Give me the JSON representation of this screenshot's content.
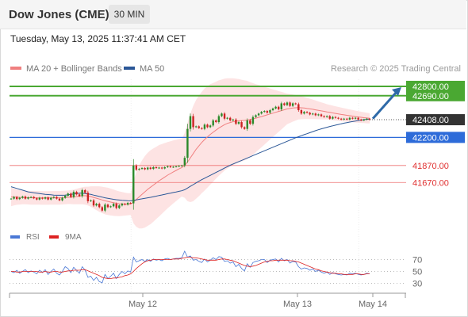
{
  "header": {
    "instrument": "Dow Jones (CME)",
    "timeframe": "30 MIN",
    "datetime": "Tuesday, May 13, 2025 11:37:41 AM CET"
  },
  "colors": {
    "bollinger": "#f08080",
    "ma50": "#2b5797",
    "resistance": "#4aa832",
    "pivot": "#2d6bd9",
    "support": "#ee7070",
    "current": "#333333",
    "rsi": "#4a78d6",
    "rsi_ma": "#dd2222",
    "candle_up": "#2a8a2a",
    "candle_down": "#cc2222"
  },
  "chart_data": [
    {
      "type": "candlestick",
      "title": "",
      "legend": [
        {
          "label": "MA 20 + Bollinger Bands",
          "color": "#f08080"
        },
        {
          "label": "MA 50",
          "color": "#2b5797"
        }
      ],
      "watermark": "Research © 2025 Trading Central",
      "x_ticks": [
        "May 12",
        "May 13",
        "May 14"
      ],
      "ylim": [
        41300,
        42930
      ],
      "current_price": "42408.00",
      "levels": [
        {
          "value": 42800,
          "label": "42800.00",
          "kind": "resistance"
        },
        {
          "value": 42690,
          "label": "42690.00",
          "kind": "resistance"
        },
        {
          "value": 42200,
          "label": "42200.00",
          "kind": "pivot"
        },
        {
          "value": 41870,
          "label": "41870.00",
          "kind": "support"
        },
        {
          "value": 41670,
          "label": "41670.00",
          "kind": "support"
        }
      ],
      "arrow": {
        "from": 42420,
        "to": 42800
      },
      "close": [
        41480,
        41500,
        41475,
        41490,
        41505,
        41480,
        41495,
        41500,
        41485,
        41470,
        41490,
        41480,
        41495,
        41470,
        41490,
        41500,
        41480,
        41460,
        41490,
        41515,
        41540,
        41500,
        41560,
        41530,
        41510,
        41580,
        41550,
        41450,
        41460,
        41400,
        41420,
        41380,
        41340,
        41410,
        41380,
        41390,
        41420,
        41370,
        41400,
        41420,
        41410,
        41430,
        41425,
        41870,
        41820,
        41830,
        41840,
        41825,
        41845,
        41830,
        41850,
        41840,
        41845,
        41835,
        41850,
        41860,
        41850,
        41855,
        41860,
        41865,
        41870,
        41960,
        42300,
        42450,
        42320,
        42330,
        42310,
        42300,
        42350,
        42320,
        42340,
        42400,
        42380,
        42450,
        42480,
        42420,
        42430,
        42400,
        42410,
        42360,
        42380,
        42320,
        42300,
        42400,
        42360,
        42440,
        42460,
        42480,
        42500,
        42510,
        42490,
        42520,
        42540,
        42560,
        42530,
        42600,
        42580,
        42610,
        42570,
        42600,
        42590,
        42520,
        42480,
        42500,
        42490,
        42470,
        42480,
        42460,
        42470,
        42450,
        42440,
        42450,
        42420,
        42440,
        42430,
        42420,
        42410,
        42420,
        42410,
        42430,
        42420,
        42430,
        42410,
        42400,
        42410,
        42420,
        42408
      ],
      "ma50": [
        41620,
        41610,
        41600,
        41590,
        41580,
        41570,
        41560,
        41555,
        41550,
        41545,
        41540,
        41535,
        41530,
        41528,
        41525,
        41522,
        41520,
        41520,
        41520,
        41522,
        41525,
        41530,
        41535,
        41540,
        41545,
        41545,
        41540,
        41535,
        41530,
        41522,
        41514,
        41506,
        41498,
        41490,
        41484,
        41478,
        41472,
        41468,
        41464,
        41460,
        41458,
        41456,
        41455,
        41460,
        41466,
        41472,
        41478,
        41484,
        41490,
        41496,
        41503,
        41510,
        41517,
        41524,
        41531,
        41538,
        41545,
        41552,
        41559,
        41566,
        41573,
        41585,
        41605,
        41625,
        41645,
        41665,
        41685,
        41703,
        41720,
        41737,
        41754,
        41771,
        41788,
        41805,
        41822,
        41839,
        41856,
        41873,
        41888,
        41902,
        41916,
        41930,
        41944,
        41958,
        41972,
        41986,
        42000,
        42014,
        42028,
        42042,
        42056,
        42070,
        42084,
        42098,
        42112,
        42126,
        42140,
        42154,
        42168,
        42182,
        42196,
        42208,
        42220,
        42232,
        42244,
        42256,
        42268,
        42279,
        42290,
        42300,
        42310,
        42319,
        42328,
        42336,
        42344,
        42352,
        42360,
        42367,
        42374,
        42380,
        42386,
        42392,
        42398,
        42403,
        42408,
        42412,
        42416
      ],
      "bb_mid": [
        41500,
        41500,
        41498,
        41496,
        41495,
        41494,
        41492,
        41490,
        41490,
        41490,
        41489,
        41488,
        41488,
        41488,
        41489,
        41490,
        41490,
        41490,
        41492,
        41494,
        41496,
        41498,
        41500,
        41505,
        41510,
        41514,
        41515,
        41510,
        41505,
        41495,
        41485,
        41475,
        41465,
        41455,
        41448,
        41440,
        41433,
        41426,
        41420,
        41418,
        41416,
        41415,
        41416,
        41440,
        41470,
        41500,
        41530,
        41560,
        41590,
        41615,
        41640,
        41665,
        41690,
        41712,
        41734,
        41756,
        41775,
        41795,
        41812,
        41830,
        41845,
        41870,
        41910,
        41960,
        42010,
        42060,
        42100,
        42140,
        42175,
        42205,
        42235,
        42260,
        42285,
        42310,
        42330,
        42350,
        42365,
        42375,
        42385,
        42390,
        42395,
        42398,
        42400,
        42405,
        42410,
        42418,
        42426,
        42435,
        42445,
        42455,
        42465,
        42475,
        42485,
        42495,
        42505,
        42515,
        42525,
        42535,
        42540,
        42545,
        42548,
        42550,
        42548,
        42545,
        42540,
        42535,
        42530,
        42524,
        42518,
        42512,
        42506,
        42500,
        42494,
        42488,
        42482,
        42476,
        42470,
        42465,
        42460,
        42455,
        42450,
        42445,
        42440,
        42436,
        42432,
        42428,
        42424
      ],
      "bb_width": [
        110,
        100,
        90,
        85,
        80,
        80,
        80,
        80,
        80,
        80,
        80,
        80,
        80,
        80,
        80,
        80,
        80,
        80,
        80,
        80,
        80,
        82,
        85,
        90,
        95,
        100,
        105,
        110,
        120,
        130,
        140,
        150,
        155,
        160,
        160,
        158,
        155,
        150,
        145,
        140,
        135,
        130,
        128,
        250,
        320,
        370,
        400,
        420,
        430,
        435,
        430,
        425,
        420,
        410,
        400,
        390,
        380,
        370,
        360,
        350,
        340,
        380,
        460,
        520,
        560,
        580,
        590,
        595,
        600,
        595,
        590,
        580,
        570,
        560,
        550,
        540,
        530,
        520,
        510,
        500,
        490,
        480,
        470,
        460,
        440,
        420,
        400,
        380,
        360,
        340,
        320,
        300,
        280,
        260,
        240,
        220,
        200,
        180,
        170,
        160,
        150,
        140,
        135,
        130,
        125,
        120,
        115,
        110,
        105,
        100,
        95,
        90,
        88,
        86,
        84,
        82,
        80,
        78,
        76,
        74,
        72,
        70,
        68,
        66,
        64,
        62,
        60
      ],
      "rsi_ticks": [
        70,
        50,
        30
      ],
      "rsi_legend": [
        {
          "label": "RSI",
          "color": "#4a78d6"
        },
        {
          "label": "9MA",
          "color": "#dd2222"
        }
      ],
      "rsi": [
        50,
        48,
        52,
        47,
        50,
        53,
        48,
        51,
        49,
        46,
        52,
        48,
        53,
        45,
        50,
        54,
        47,
        44,
        50,
        58,
        55,
        48,
        57,
        52,
        47,
        58,
        52,
        40,
        42,
        35,
        40,
        33,
        31,
        45,
        38,
        42,
        47,
        38,
        45,
        50,
        46,
        51,
        49,
        74,
        66,
        68,
        70,
        67,
        70,
        67,
        71,
        69,
        70,
        68,
        71,
        72,
        70,
        71,
        72,
        72,
        73,
        84,
        74,
        76,
        69,
        70,
        67,
        65,
        71,
        66,
        69,
        73,
        70,
        75,
        74,
        67,
        68,
        64,
        66,
        58,
        62,
        55,
        51,
        63,
        57,
        65,
        67,
        68,
        70,
        70,
        65,
        69,
        70,
        71,
        66,
        72,
        68,
        70,
        64,
        67,
        66,
        58,
        54,
        56,
        55,
        52,
        54,
        50,
        52,
        49,
        47,
        49,
        45,
        48,
        46,
        45,
        44,
        45,
        44,
        47,
        46,
        47,
        45,
        44,
        45,
        47,
        46
      ],
      "rsi_ma": [
        50,
        50,
        49,
        49,
        50,
        50,
        50,
        50,
        50,
        50,
        49,
        49,
        50,
        49,
        49,
        50,
        50,
        49,
        49,
        50,
        51,
        51,
        52,
        52,
        52,
        53,
        53,
        51,
        49,
        47,
        45,
        43,
        40,
        39,
        38,
        38,
        39,
        39,
        40,
        41,
        43,
        44,
        46,
        50,
        55,
        59,
        63,
        66,
        68,
        69,
        70,
        70,
        70,
        70,
        70,
        70,
        70,
        71,
        71,
        71,
        72,
        73,
        74,
        74,
        73,
        73,
        72,
        71,
        70,
        69,
        69,
        69,
        69,
        70,
        71,
        71,
        70,
        69,
        68,
        66,
        64,
        62,
        60,
        59,
        58,
        59,
        60,
        62,
        64,
        66,
        67,
        68,
        68,
        69,
        69,
        69,
        69,
        69,
        68,
        68,
        67,
        66,
        64,
        62,
        60,
        58,
        56,
        54,
        53,
        51,
        50,
        49,
        48,
        47,
        47,
        46,
        46,
        45,
        45,
        45,
        45,
        46,
        46,
        45,
        45,
        46,
        46
      ]
    }
  ]
}
